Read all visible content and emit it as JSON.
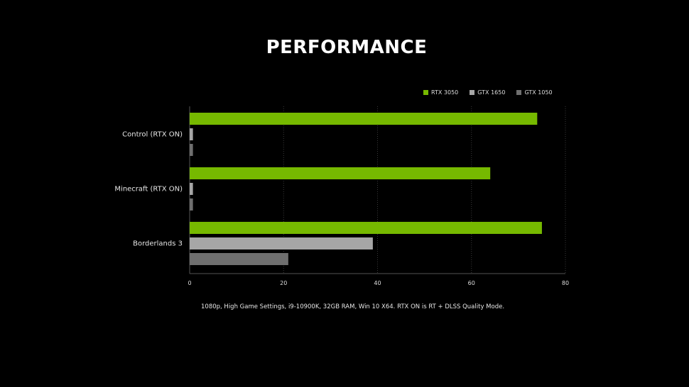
{
  "chart_data": {
    "type": "bar",
    "orientation": "horizontal",
    "title": "PERFORMANCE",
    "categories": [
      "Control (RTX ON)",
      "Minecraft (RTX ON)",
      "Borderlands 3"
    ],
    "series": [
      {
        "name": "RTX 3050",
        "color": "#76b900",
        "values": [
          74,
          64,
          75
        ]
      },
      {
        "name": "GTX 1650",
        "color": "#a6a6a6",
        "values": [
          0.7,
          0.7,
          39
        ]
      },
      {
        "name": "GTX 1050",
        "color": "#6f6f6f",
        "values": [
          0.7,
          0.7,
          21
        ]
      }
    ],
    "xlim": [
      0,
      80
    ],
    "xticks": [
      "0",
      "20",
      "40",
      "60",
      "80"
    ],
    "grid": true,
    "legend_position": "top-right",
    "xlabel": "",
    "ylabel": ""
  },
  "footnote": "1080p, High Game Settings, i9-10900K, 32GB RAM, Win 10 X64. RTX ON is RT + DLSS Quality Mode."
}
